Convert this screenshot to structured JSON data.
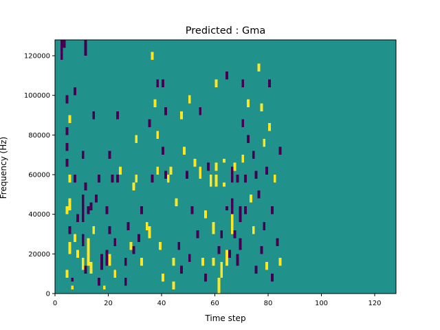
{
  "chart_data": {
    "type": "heatmap",
    "title": "Predicted : Gma",
    "xlabel": "Time step",
    "ylabel": "Frequency (Hz)",
    "xlim": [
      0,
      128
    ],
    "ylim": [
      0,
      128000
    ],
    "x_ticks": [
      0,
      20,
      40,
      60,
      80,
      100,
      120
    ],
    "x_tick_labels": [
      "0",
      "20",
      "40",
      "60",
      "80",
      "100",
      "120"
    ],
    "y_ticks": [
      0,
      20000,
      40000,
      60000,
      80000,
      100000,
      120000
    ],
    "y_tick_labels": [
      "0",
      "20000",
      "40000",
      "60000",
      "80000",
      "100000",
      "120000"
    ],
    "grid": false,
    "legend": "none",
    "colors": {
      "background": "#21918c",
      "low": "#440154",
      "high": "#fde725"
    },
    "value_meaning": {
      "background": 0,
      "low": -1,
      "high": 1
    },
    "cells_note": "Each cell is one time step wide and 2000 Hz tall: [time_step, freq_start_hz, freq_end_hz, value]",
    "cells": [
      [
        2,
        118000,
        128000,
        -1
      ],
      [
        3,
        124000,
        128000,
        -1
      ],
      [
        4,
        96000,
        100000,
        -1
      ],
      [
        4,
        80000,
        84000,
        -1
      ],
      [
        4,
        72000,
        76000,
        -1
      ],
      [
        4,
        64000,
        68000,
        -1
      ],
      [
        4,
        40000,
        44000,
        1
      ],
      [
        4,
        8000,
        12000,
        1
      ],
      [
        5,
        86000,
        90000,
        1
      ],
      [
        5,
        56000,
        60000,
        1
      ],
      [
        5,
        42000,
        48000,
        1
      ],
      [
        5,
        30000,
        34000,
        -1
      ],
      [
        5,
        20000,
        26000,
        1
      ],
      [
        6,
        6000,
        8000,
        -1
      ],
      [
        6,
        2000,
        4000,
        1
      ],
      [
        7,
        100000,
        104000,
        -1
      ],
      [
        7,
        56000,
        60000,
        -1
      ],
      [
        7,
        26000,
        30000,
        1
      ],
      [
        8,
        36000,
        40000,
        -1
      ],
      [
        8,
        18000,
        22000,
        1
      ],
      [
        10,
        68000,
        72000,
        -1
      ],
      [
        10,
        36000,
        50000,
        -1
      ],
      [
        10,
        24000,
        30000,
        -1
      ],
      [
        10,
        12000,
        18000,
        1
      ],
      [
        11,
        120000,
        128000,
        -1
      ],
      [
        11,
        52000,
        56000,
        -1
      ],
      [
        11,
        10000,
        14000,
        -1
      ],
      [
        12,
        40000,
        44000,
        -1
      ],
      [
        12,
        14000,
        28000,
        1
      ],
      [
        13,
        42000,
        46000,
        -1
      ],
      [
        13,
        10000,
        16000,
        1
      ],
      [
        14,
        88000,
        92000,
        -1
      ],
      [
        14,
        30000,
        34000,
        1
      ],
      [
        15,
        46000,
        50000,
        -1
      ],
      [
        16,
        4000,
        8000,
        -1
      ],
      [
        16,
        56000,
        60000,
        -1
      ],
      [
        17,
        12000,
        20000,
        -1
      ],
      [
        18,
        2000,
        4000,
        1
      ],
      [
        19,
        40000,
        44000,
        -1
      ],
      [
        19,
        14000,
        22000,
        -1
      ],
      [
        20,
        68000,
        72000,
        -1
      ],
      [
        20,
        30000,
        34000,
        -1
      ],
      [
        20,
        14000,
        20000,
        1
      ],
      [
        21,
        56000,
        60000,
        -1
      ],
      [
        22,
        24000,
        28000,
        -1
      ],
      [
        22,
        8000,
        12000,
        1
      ],
      [
        23,
        88000,
        92000,
        -1
      ],
      [
        23,
        56000,
        60000,
        -1
      ],
      [
        24,
        60000,
        64000,
        1
      ],
      [
        26,
        4000,
        8000,
        -1
      ],
      [
        26,
        14000,
        18000,
        -1
      ],
      [
        27,
        32000,
        36000,
        -1
      ],
      [
        28,
        22000,
        26000,
        1
      ],
      [
        29,
        52000,
        56000,
        1
      ],
      [
        29,
        20000,
        24000,
        -1
      ],
      [
        30,
        76000,
        80000,
        1
      ],
      [
        30,
        56000,
        60000,
        1
      ],
      [
        31,
        26000,
        30000,
        -1
      ],
      [
        32,
        40000,
        44000,
        -1
      ],
      [
        32,
        14000,
        18000,
        1
      ],
      [
        34,
        32000,
        36000,
        1
      ],
      [
        35,
        84000,
        88000,
        -1
      ],
      [
        35,
        28000,
        34000,
        1
      ],
      [
        36,
        118000,
        122000,
        1
      ],
      [
        36,
        56000,
        60000,
        -1
      ],
      [
        37,
        94000,
        98000,
        1
      ],
      [
        38,
        104000,
        108000,
        -1
      ],
      [
        38,
        78000,
        82000,
        1
      ],
      [
        38,
        60000,
        64000,
        1
      ],
      [
        39,
        22000,
        26000,
        1
      ],
      [
        40,
        104000,
        108000,
        -1
      ],
      [
        40,
        70000,
        74000,
        -1
      ],
      [
        40,
        6000,
        10000,
        1
      ],
      [
        41,
        90000,
        94000,
        -1
      ],
      [
        41,
        58000,
        62000,
        -1
      ],
      [
        42,
        56000,
        60000,
        1
      ],
      [
        43,
        60000,
        64000,
        1
      ],
      [
        44,
        14000,
        18000,
        1
      ],
      [
        44,
        2000,
        6000,
        1
      ],
      [
        45,
        44000,
        48000,
        1
      ],
      [
        46,
        22000,
        26000,
        -1
      ],
      [
        47,
        88000,
        92000,
        1
      ],
      [
        47,
        10000,
        14000,
        -1
      ],
      [
        48,
        70000,
        74000,
        1
      ],
      [
        49,
        58000,
        62000,
        -1
      ],
      [
        50,
        96000,
        100000,
        1
      ],
      [
        50,
        16000,
        20000,
        -1
      ],
      [
        51,
        40000,
        44000,
        -1
      ],
      [
        52,
        64000,
        68000,
        1
      ],
      [
        53,
        28000,
        32000,
        -1
      ],
      [
        54,
        90000,
        94000,
        -1
      ],
      [
        54,
        58000,
        64000,
        1
      ],
      [
        55,
        14000,
        18000,
        1
      ],
      [
        56,
        6000,
        10000,
        -1
      ],
      [
        56,
        38000,
        42000,
        1
      ],
      [
        57,
        62000,
        66000,
        -1
      ],
      [
        58,
        54000,
        60000,
        1
      ],
      [
        59,
        14000,
        18000,
        1
      ],
      [
        59,
        30000,
        36000,
        1
      ],
      [
        60,
        104000,
        108000,
        1
      ],
      [
        60,
        62000,
        66000,
        1
      ],
      [
        60,
        54000,
        60000,
        1
      ],
      [
        61,
        20000,
        24000,
        -1
      ],
      [
        61,
        4000,
        8000,
        1
      ],
      [
        61,
        0,
        4000,
        1
      ],
      [
        62,
        28000,
        32000,
        -1
      ],
      [
        62,
        8000,
        16000,
        1
      ],
      [
        63,
        66000,
        68000,
        1
      ],
      [
        63,
        54000,
        56000,
        1
      ],
      [
        64,
        108000,
        112000,
        -1
      ],
      [
        64,
        42000,
        44000,
        -1
      ],
      [
        64,
        14000,
        22000,
        1
      ],
      [
        65,
        18000,
        22000,
        -1
      ],
      [
        66,
        56000,
        64000,
        -1
      ],
      [
        66,
        40000,
        48000,
        -1
      ],
      [
        66,
        30000,
        40000,
        1
      ],
      [
        67,
        28000,
        32000,
        -1
      ],
      [
        67,
        62000,
        66000,
        1
      ],
      [
        68,
        56000,
        60000,
        -1
      ],
      [
        68,
        14000,
        20000,
        -1
      ],
      [
        69,
        36000,
        44000,
        -1
      ],
      [
        69,
        22000,
        28000,
        -1
      ],
      [
        70,
        104000,
        108000,
        -1
      ],
      [
        70,
        84000,
        88000,
        -1
      ],
      [
        70,
        66000,
        70000,
        1
      ],
      [
        71,
        56000,
        60000,
        -1
      ],
      [
        71,
        40000,
        44000,
        -1
      ],
      [
        72,
        94000,
        98000,
        1
      ],
      [
        72,
        76000,
        80000,
        -1
      ],
      [
        73,
        46000,
        50000,
        1
      ],
      [
        74,
        68000,
        72000,
        -1
      ],
      [
        74,
        30000,
        34000,
        1
      ],
      [
        75,
        58000,
        62000,
        -1
      ],
      [
        75,
        10000,
        14000,
        -1
      ],
      [
        76,
        112000,
        116000,
        1
      ],
      [
        76,
        48000,
        52000,
        -1
      ],
      [
        77,
        92000,
        96000,
        1
      ],
      [
        77,
        20000,
        24000,
        -1
      ],
      [
        78,
        32000,
        36000,
        -1
      ],
      [
        78,
        74000,
        78000,
        1
      ],
      [
        79,
        60000,
        64000,
        -1
      ],
      [
        79,
        12000,
        16000,
        1
      ],
      [
        80,
        104000,
        108000,
        -1
      ],
      [
        80,
        82000,
        86000,
        1
      ],
      [
        81,
        40000,
        44000,
        -1
      ],
      [
        81,
        6000,
        10000,
        -1
      ],
      [
        82,
        56000,
        60000,
        1
      ],
      [
        83,
        24000,
        28000,
        -1
      ],
      [
        84,
        70000,
        74000,
        -1
      ],
      [
        84,
        14000,
        18000,
        1
      ]
    ]
  }
}
